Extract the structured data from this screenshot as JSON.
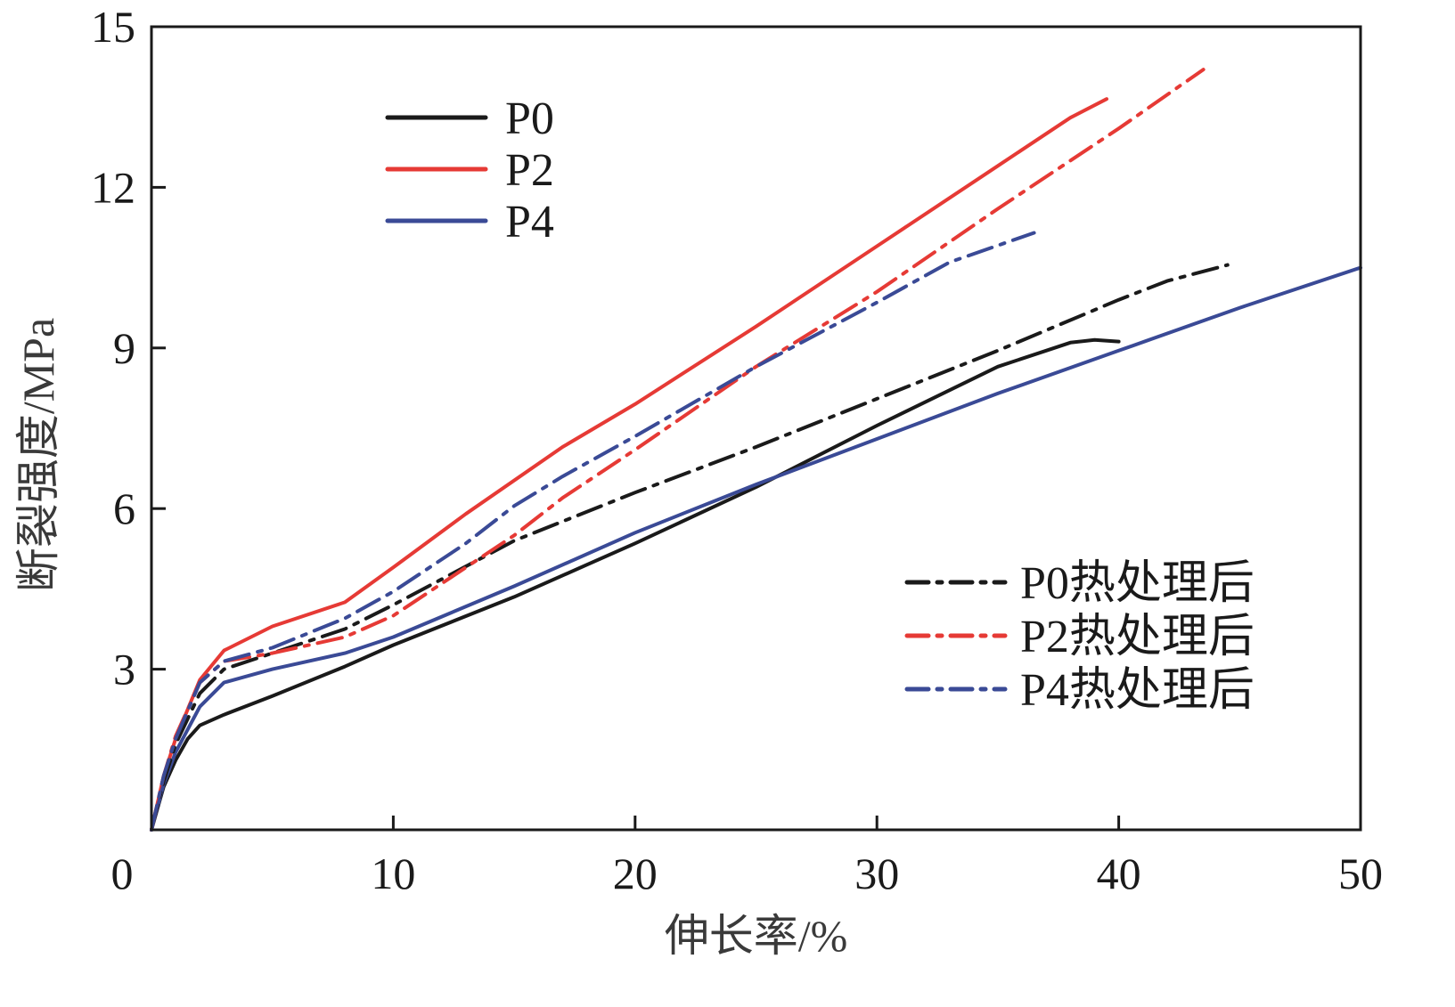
{
  "chart_data": {
    "type": "line",
    "xlabel": "伸长率/%",
    "ylabel": "断裂强度/MPa",
    "xlim": [
      0,
      50
    ],
    "ylim": [
      0,
      15
    ],
    "xticks": [
      0,
      10,
      20,
      30,
      40,
      50
    ],
    "yticks": [
      3,
      6,
      9,
      12,
      15
    ],
    "grid": false,
    "legends": [
      {
        "placement": "upper-left",
        "entries": [
          "P0",
          "P2",
          "P4"
        ]
      },
      {
        "placement": "lower-right",
        "entries": [
          "P0热处理后",
          "P2热处理后",
          "P4热处理后"
        ]
      }
    ],
    "series": [
      {
        "name": "P0",
        "color": "#1a1a1a",
        "dash": "solid",
        "x": [
          0,
          0.5,
          1,
          1.5,
          2,
          3,
          5,
          8,
          10,
          15,
          20,
          25,
          30,
          35,
          37,
          38,
          39,
          40
        ],
        "y": [
          0,
          0.8,
          1.3,
          1.7,
          1.95,
          2.15,
          2.5,
          3.05,
          3.45,
          4.35,
          5.35,
          6.4,
          7.55,
          8.65,
          8.95,
          9.1,
          9.15,
          9.12
        ]
      },
      {
        "name": "P2",
        "color": "#e63a35",
        "dash": "solid",
        "x": [
          0,
          0.5,
          1,
          2,
          3,
          5,
          8,
          10,
          13,
          17,
          20,
          25,
          30,
          35,
          38,
          39.5
        ],
        "y": [
          0,
          1.0,
          1.7,
          2.8,
          3.35,
          3.8,
          4.25,
          4.9,
          5.9,
          7.15,
          7.95,
          9.4,
          10.9,
          12.4,
          13.3,
          13.65
        ]
      },
      {
        "name": "P4",
        "color": "#3a4a96",
        "dash": "solid",
        "x": [
          0,
          0.5,
          1,
          2,
          3,
          5,
          8,
          10,
          15,
          20,
          25,
          30,
          35,
          40,
          45,
          50
        ],
        "y": [
          0,
          0.85,
          1.45,
          2.3,
          2.75,
          3.0,
          3.3,
          3.6,
          4.55,
          5.55,
          6.45,
          7.3,
          8.15,
          8.95,
          9.75,
          10.5
        ]
      },
      {
        "name": "P0热处理后",
        "color": "#1a1a1a",
        "dash": "dashdot",
        "x": [
          0,
          0.5,
          1,
          2,
          3,
          5,
          8,
          10,
          15,
          20,
          25,
          30,
          35,
          40,
          42,
          44.5
        ],
        "y": [
          0,
          0.9,
          1.6,
          2.55,
          3.0,
          3.3,
          3.75,
          4.2,
          5.4,
          6.3,
          7.15,
          8.05,
          8.95,
          9.9,
          10.25,
          10.55
        ]
      },
      {
        "name": "P2热处理后",
        "color": "#e63a35",
        "dash": "dashdot",
        "x": [
          0,
          0.5,
          1,
          2,
          3,
          5,
          8,
          10,
          12,
          15,
          17,
          20,
          25,
          30,
          35,
          40,
          43.5
        ],
        "y": [
          0,
          1.0,
          1.75,
          2.75,
          3.15,
          3.3,
          3.6,
          4.0,
          4.6,
          5.5,
          6.2,
          7.1,
          8.65,
          10.05,
          11.6,
          13.1,
          14.2
        ]
      },
      {
        "name": "P4热处理后",
        "color": "#3a4a96",
        "dash": "dashdot",
        "x": [
          0,
          0.5,
          1,
          2,
          3,
          5,
          8,
          10,
          13,
          15,
          17,
          20,
          25,
          30,
          33,
          36.5
        ],
        "y": [
          0,
          1.0,
          1.7,
          2.75,
          3.15,
          3.4,
          3.95,
          4.45,
          5.35,
          6.05,
          6.6,
          7.35,
          8.65,
          9.85,
          10.6,
          11.15
        ]
      }
    ]
  }
}
